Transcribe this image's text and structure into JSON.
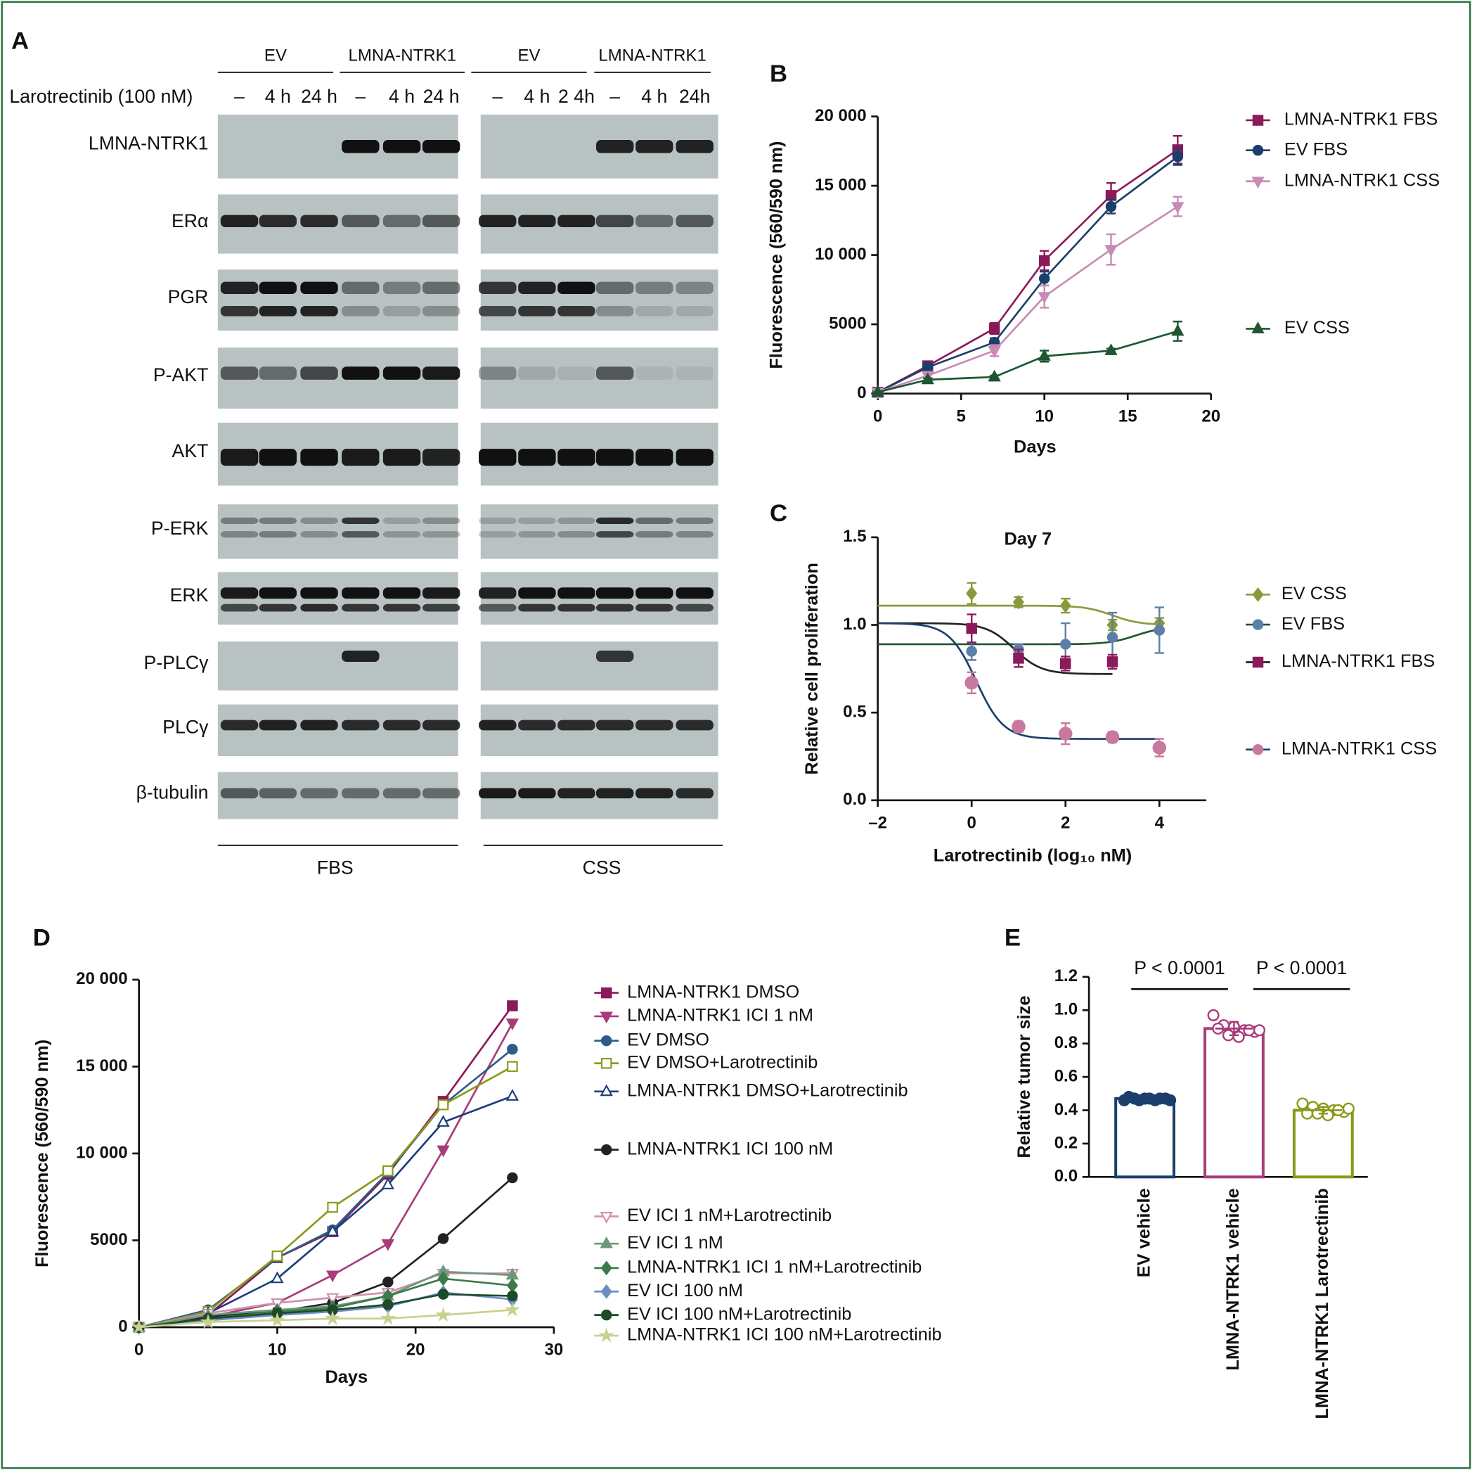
{
  "blot": {
    "panel": "A",
    "groups": [
      "EV",
      "LMNA-NTRK1",
      "EV",
      "LMNA-NTRK1"
    ],
    "treatment_label": "Larotrectinib (100 nM)",
    "lanes": [
      "–",
      "4 h",
      "24 h",
      "–",
      "4 h",
      "24 h",
      "–",
      "4 h",
      "2 4h",
      "–",
      "4 h",
      "24h"
    ],
    "rows": [
      "LMNA-NTRK1",
      "ERα",
      "PGR",
      "P-AKT",
      "AKT",
      "P-ERK",
      "ERK",
      "P-PLCγ",
      "PLCγ",
      "β-tubulin"
    ],
    "conditions": [
      "FBS",
      "CSS"
    ]
  },
  "chart_data": [
    {
      "type": "line",
      "panel": "B",
      "x_label": "Days",
      "y_label": "Fluorescence (560/590 nm)",
      "x": [
        0,
        3,
        7,
        10,
        14,
        18
      ],
      "xlim": [
        0,
        20
      ],
      "xticks": [
        0,
        5,
        10,
        15,
        20
      ],
      "ylim": [
        0,
        20000
      ],
      "yticks": [
        0,
        5000,
        {
          "value": 10000,
          "label": "10 000"
        },
        {
          "value": 15000,
          "label": "15 000"
        },
        {
          "value": 20000,
          "label": "20 000"
        }
      ],
      "series": [
        {
          "name": "LMNA-NTRK1 FBS",
          "color": "#8b1a5a",
          "marker": "square",
          "values": [
            100,
            2000,
            4700,
            9600,
            14300,
            17600
          ],
          "errors": [
            0,
            150,
            400,
            700,
            900,
            1000
          ]
        },
        {
          "name": "EV FBS",
          "color": "#1b3f6b",
          "marker": "circle",
          "values": [
            100,
            1900,
            3700,
            8300,
            13500,
            17100
          ],
          "errors": [
            0,
            150,
            300,
            500,
            500,
            600
          ]
        },
        {
          "name": "LMNA-NTRK1 CSS",
          "color": "#c98bb5",
          "marker": "triangle-down",
          "values": [
            100,
            1300,
            3100,
            7000,
            10400,
            13500
          ],
          "errors": [
            0,
            150,
            400,
            800,
            1100,
            700
          ]
        },
        {
          "name": "EV CSS",
          "color": "#1e5631",
          "marker": "triangle",
          "values": [
            100,
            1000,
            1200,
            2700,
            3100,
            4500
          ],
          "errors": [
            0,
            100,
            100,
            400,
            150,
            700
          ]
        }
      ]
    },
    {
      "type": "scatter",
      "panel": "C",
      "title": "Day 7",
      "x_label": "Larotrectinib (log₁₀ nM)",
      "y_label": "Relative cell proliferation",
      "xlim": [
        -2,
        5
      ],
      "xticks": [
        {
          "value": -2,
          "label": "–2"
        },
        0,
        2,
        4
      ],
      "ylim": [
        0,
        1.5
      ],
      "yticks": [
        {
          "value": 0,
          "label": "0.0"
        },
        0.5,
        {
          "value": 1,
          "label": "1.0"
        },
        1.5
      ],
      "series": [
        {
          "name": "EV CSS",
          "color": "#8a9a3a",
          "marker": "diamond",
          "x": [
            0,
            1,
            2,
            3,
            4
          ],
          "values": [
            1.18,
            1.13,
            1.11,
            1.0,
            1.01
          ],
          "errors": [
            0.06,
            0.03,
            0.04,
            0.03,
            0.03
          ],
          "fit": {
            "top": 1.11,
            "bottom": 1.0,
            "logIC50": 3,
            "hill": 1.5
          },
          "fit_color": "#8a9a3a"
        },
        {
          "name": "EV FBS",
          "color": "#5b7fa8",
          "marker": "circle",
          "x": [
            0,
            1,
            2,
            3,
            4
          ],
          "values": [
            0.85,
            0.86,
            0.89,
            0.93,
            0.97
          ],
          "errors": [
            0.05,
            0.03,
            0.12,
            0.14,
            0.13
          ],
          "fit": {
            "top": 0.89,
            "bottom": 0.99,
            "logIC50": 3.5,
            "hill": 1.5
          },
          "fit_color": "#1e5631"
        },
        {
          "name": "LMNA-NTRK1 FBS",
          "color": "#8b1a5a",
          "marker": "square",
          "x": [
            0,
            1,
            2,
            3
          ],
          "values": [
            0.98,
            0.81,
            0.78,
            0.79
          ],
          "errors": [
            0.08,
            0.05,
            0.04,
            0.04
          ],
          "fit": {
            "top": 1.01,
            "bottom": 0.72,
            "logIC50": 0.9,
            "hill": 1.5
          },
          "fit_color": "#222222"
        },
        {
          "name": "LMNA-NTRK1 CSS",
          "color": "#c9789e",
          "marker": "circle",
          "x": [
            0,
            1,
            2,
            3,
            4
          ],
          "values": [
            0.67,
            0.42,
            0.38,
            0.36,
            0.3
          ],
          "errors": [
            0.06,
            0.03,
            0.06,
            0.03,
            0.05
          ],
          "fit": {
            "top": 1.01,
            "bottom": 0.35,
            "logIC50": 0.1,
            "hill": 1.5
          },
          "fit_color": "#1b3f6b"
        }
      ]
    },
    {
      "type": "line",
      "panel": "D",
      "x_label": "Days",
      "y_label": "Fluorescence (560/590 nm)",
      "x": [
        0,
        5,
        10,
        14,
        18,
        22,
        27
      ],
      "xlim": [
        0,
        30
      ],
      "xticks": [
        0,
        10,
        20,
        30
      ],
      "ylim": [
        0,
        20000
      ],
      "yticks": [
        0,
        5000,
        {
          "value": 10000,
          "label": "10 000"
        },
        {
          "value": 15000,
          "label": "15 000"
        },
        {
          "value": 20000,
          "label": "20 000"
        }
      ],
      "series": [
        {
          "name": "LMNA-NTRK1 DMSO",
          "color": "#8b1a5a",
          "marker": "square",
          "values": [
            0,
            700,
            4000,
            5500,
            8800,
            13000,
            18500
          ]
        },
        {
          "name": "LMNA-NTRK1 ICI 1 nM",
          "color": "#a83c7a",
          "marker": "triangle-down",
          "values": [
            0,
            600,
            1400,
            3000,
            4800,
            10200,
            17500
          ]
        },
        {
          "name": "EV DMSO",
          "color": "#2d5c8a",
          "marker": "circle",
          "values": [
            0,
            1000,
            4000,
            5600,
            8900,
            12800,
            16000
          ]
        },
        {
          "name": "EV DMSO+Larotrectinib",
          "color": "#8a9a1a",
          "marker": "square",
          "filled": false,
          "values": [
            0,
            900,
            4100,
            6900,
            9000,
            12800,
            15000
          ]
        },
        {
          "name": "LMNA-NTRK1 DMSO+Larotrectinib",
          "color": "#1b3f7b",
          "marker": "triangle",
          "filled": false,
          "values": [
            0,
            800,
            2800,
            5500,
            8200,
            11800,
            13300
          ]
        },
        {
          "name": "LMNA-NTRK1 ICI 100 nM",
          "color": "#222222",
          "marker": "circle",
          "values": [
            0,
            600,
            900,
            1400,
            2600,
            5100,
            8600
          ]
        },
        {
          "name": "EV ICI 1 nM+Larotrectinib",
          "color": "#d08fb0",
          "marker": "triangle-down",
          "filled": false,
          "values": [
            0,
            800,
            1400,
            1700,
            2000,
            3100,
            3100
          ]
        },
        {
          "name": "EV ICI 1 nM",
          "color": "#6b9a7a",
          "marker": "triangle",
          "values": [
            0,
            700,
            1000,
            1200,
            1800,
            3200,
            3000
          ]
        },
        {
          "name": "LMNA-NTRK1 ICI 1 nM+Larotrectinib",
          "color": "#3d7a4a",
          "marker": "diamond",
          "values": [
            0,
            500,
            900,
            1100,
            1800,
            2800,
            2400
          ]
        },
        {
          "name": "EV ICI 100 nM",
          "color": "#6a8fc0",
          "marker": "diamond",
          "values": [
            0,
            400,
            700,
            900,
            1200,
            2000,
            1600
          ]
        },
        {
          "name": "EV ICI 100 nM+Larotrectinib",
          "color": "#1d4a2a",
          "marker": "circle",
          "values": [
            0,
            500,
            800,
            1000,
            1300,
            1900,
            1800
          ]
        },
        {
          "name": "LMNA-NTRK1 ICI 100 nM+Larotrectinib",
          "color": "#c8d090",
          "marker": "star",
          "values": [
            0,
            300,
            400,
            500,
            500,
            700,
            1000
          ]
        }
      ]
    },
    {
      "type": "bar",
      "panel": "E",
      "y_label": "Relative tumor size",
      "categories": [
        "EV vehicle",
        "LMNA-NTRK1 vehicle",
        "LMNA-NTRK1 Larotrectinib"
      ],
      "values": [
        0.47,
        0.89,
        0.4
      ],
      "errors": [
        0.01,
        0.04,
        0.02
      ],
      "colors": [
        "#1b3f6b",
        "#a83c7a",
        "#8a9a1a"
      ],
      "points": [
        [
          0.46,
          0.47,
          0.47,
          0.46,
          0.47,
          0.48,
          0.46,
          0.47,
          0.47,
          0.46
        ],
        [
          0.97,
          0.91,
          0.9,
          0.88,
          0.87,
          0.89,
          0.85,
          0.84,
          0.88,
          0.88
        ],
        [
          0.44,
          0.42,
          0.41,
          0.4,
          0.39,
          0.38,
          0.38,
          0.37,
          0.4,
          0.41
        ]
      ],
      "ylim": [
        0,
        1.2
      ],
      "yticks": [
        {
          "value": 0,
          "label": "0.0"
        },
        0.2,
        0.4,
        0.6,
        0.8,
        {
          "value": 1,
          "label": "1.0"
        },
        1.2
      ],
      "annotations": [
        "P < 0.0001",
        "P < 0.0001"
      ]
    }
  ]
}
